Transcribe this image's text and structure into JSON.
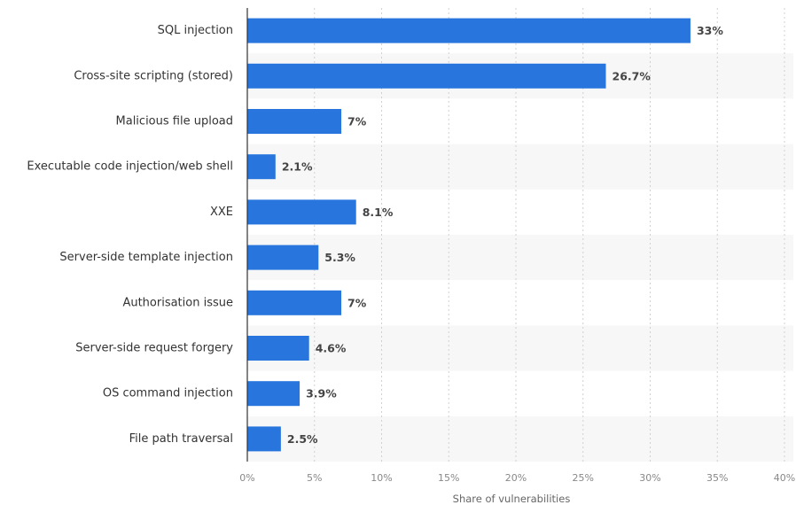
{
  "chart_data": {
    "type": "bar",
    "orientation": "horizontal",
    "categories": [
      "SQL injection",
      "Cross-site scripting (stored)",
      "Malicious file upload",
      "Executable code injection/web shell",
      "XXE",
      "Server-side template injection",
      "Authorisation issue",
      "Server-side request forgery",
      "OS command injection",
      "File path traversal"
    ],
    "values": [
      33,
      26.7,
      7,
      2.1,
      8.1,
      5.3,
      7,
      4.6,
      3.9,
      2.5
    ],
    "value_labels": [
      "33%",
      "26.7%",
      "7%",
      "2.1%",
      "8.1%",
      "5.3%",
      "7%",
      "4.6%",
      "3.9%",
      "2.5%"
    ],
    "xlabel": "Share of vulnerabilities",
    "ylabel": "",
    "xlim": [
      0,
      40
    ],
    "xticks": [
      0,
      5,
      10,
      15,
      20,
      25,
      30,
      35,
      40
    ],
    "xtick_labels": [
      "0%",
      "5%",
      "10%",
      "15%",
      "20%",
      "25%",
      "30%",
      "35%",
      "40%"
    ],
    "grid": true,
    "colors": {
      "bar": "#2876DD",
      "band": "#F7F7F7",
      "grid": "#D0D0D0",
      "axis": "#333333"
    }
  }
}
